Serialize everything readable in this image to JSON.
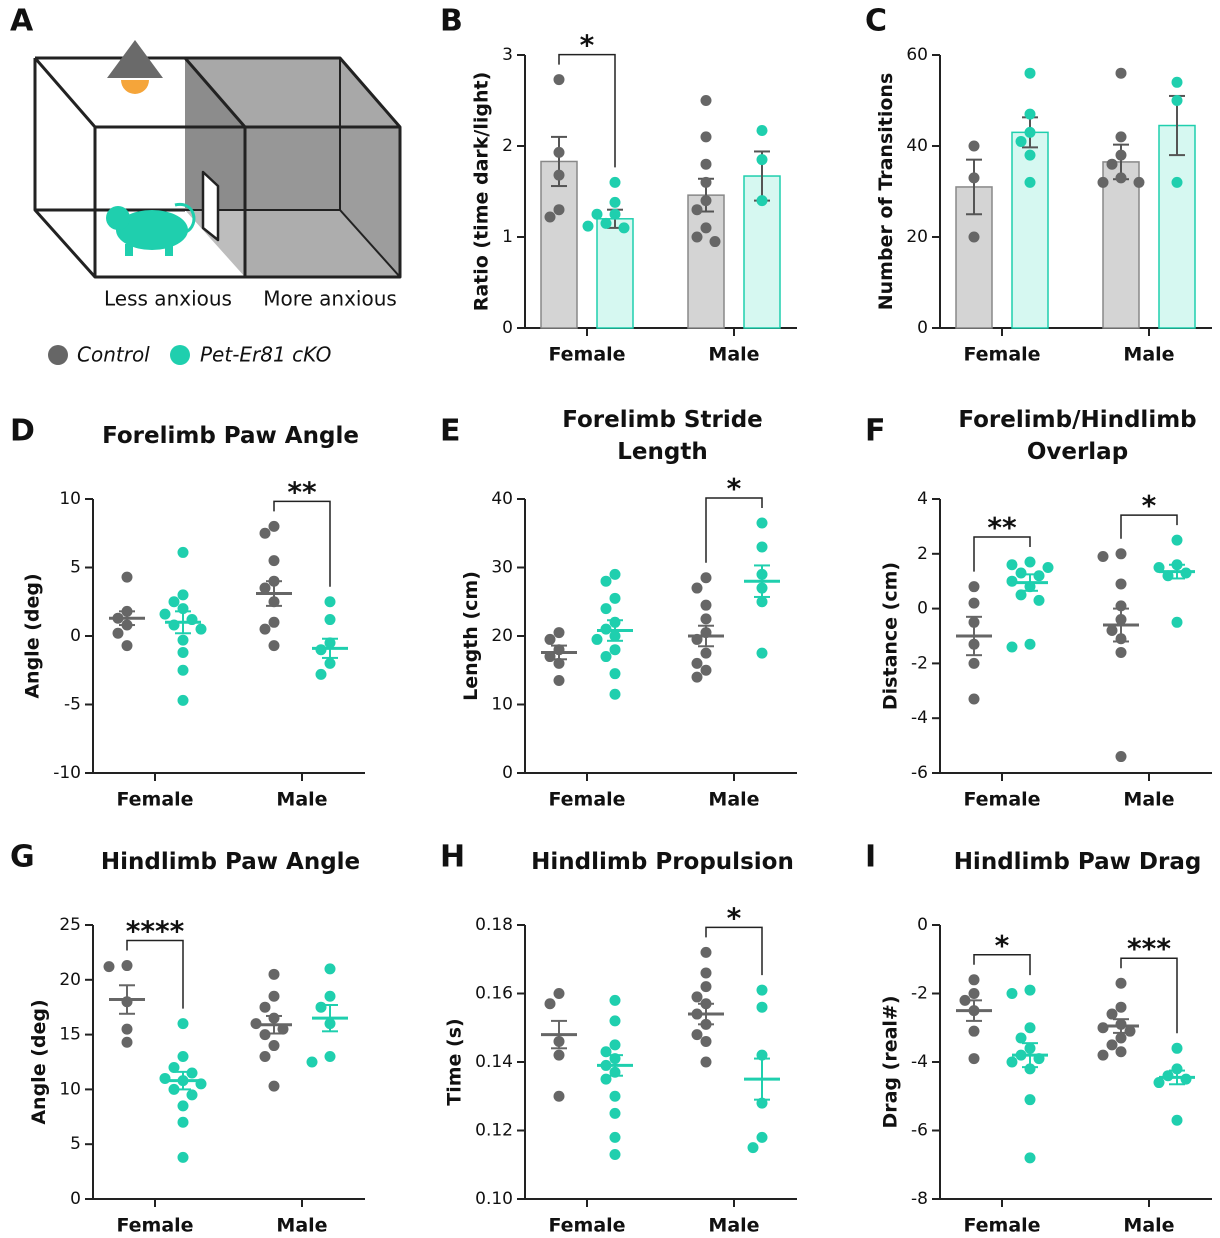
{
  "diagram": {
    "panel": "A",
    "left_caption": "Less anxious",
    "right_caption": "More anxious"
  },
  "legend": [
    {
      "name": "Control",
      "color": "#666666",
      "fill": "#d4d4d4"
    },
    {
      "name": "Pet-Er81 cKO",
      "color": "#1fcfae",
      "fill": "#d6f8f1"
    }
  ],
  "chart_data": [
    {
      "type": "bar",
      "panel": "B",
      "ylabel": "Ratio (time dark/light)",
      "categories": [
        "Female",
        "Male"
      ],
      "ylim": [
        0,
        3
      ],
      "yticks": [
        0,
        1,
        2,
        3
      ],
      "series": [
        {
          "means": [
            1.83,
            1.46
          ],
          "errors": [
            0.27,
            0.18
          ],
          "points": [
            [
              2.73,
              1.93,
              1.68,
              1.3,
              1.22
            ],
            [
              2.5,
              2.1,
              1.8,
              1.6,
              1.4,
              1.3,
              1.1,
              1.0,
              0.95
            ]
          ]
        },
        {
          "means": [
            1.2,
            1.67
          ],
          "errors": [
            0.1,
            0.27
          ],
          "points": [
            [
              1.6,
              1.38,
              1.25,
              1.15,
              1.1,
              1.12,
              1.25
            ],
            [
              2.17,
              1.85,
              1.4
            ]
          ]
        }
      ],
      "annotations": [
        {
          "category": 0,
          "text": "*"
        }
      ]
    },
    {
      "type": "bar",
      "panel": "C",
      "ylabel": "Number of Transitions",
      "categories": [
        "Female",
        "Male"
      ],
      "ylim": [
        0,
        60
      ],
      "yticks": [
        0,
        20,
        40,
        60
      ],
      "series": [
        {
          "means": [
            31,
            36.5
          ],
          "errors": [
            6,
            3.8
          ],
          "points": [
            [
              40,
              33,
              20
            ],
            [
              56,
              42,
              38,
              36,
              33,
              32,
              32
            ]
          ]
        },
        {
          "means": [
            43,
            44.5
          ],
          "errors": [
            3.3,
            6.5
          ],
          "points": [
            [
              56,
              47,
              43,
              41,
              38,
              32
            ],
            [
              54,
              50,
              32
            ]
          ]
        }
      ],
      "annotations": []
    },
    {
      "type": "scatter",
      "panel": "D",
      "title": "Forelimb Paw Angle",
      "ylabel": "Angle (deg)",
      "categories": [
        "Female",
        "Male"
      ],
      "ylim": [
        -10,
        10
      ],
      "yticks": [
        -10,
        -5,
        0,
        5,
        10
      ],
      "series": [
        {
          "means": [
            1.3,
            3.1
          ],
          "errors": [
            0.5,
            0.9
          ],
          "points": [
            [
              4.3,
              1.8,
              1.3,
              0.8,
              0.2,
              -0.7
            ],
            [
              8.0,
              7.5,
              5.5,
              4.0,
              3.5,
              2.5,
              1.0,
              0.5,
              -0.7
            ]
          ]
        },
        {
          "means": [
            1.0,
            -0.9
          ],
          "errors": [
            0.8,
            0.7
          ],
          "points": [
            [
              6.1,
              3.0,
              2.5,
              2.0,
              1.6,
              1.2,
              0.8,
              0.5,
              -0.3,
              -1.2,
              -2.5,
              -4.7
            ],
            [
              2.5,
              1.2,
              -0.5,
              -1.0,
              -2.0,
              -2.8
            ]
          ]
        }
      ],
      "annotations": [
        {
          "category": 1,
          "text": "**"
        }
      ]
    },
    {
      "type": "scatter",
      "panel": "E",
      "title": "Forelimb Stride Length",
      "ylabel": "Length (cm)",
      "categories": [
        "Female",
        "Male"
      ],
      "ylim": [
        0,
        40
      ],
      "yticks": [
        0,
        10,
        20,
        30,
        40
      ],
      "series": [
        {
          "means": [
            17.6,
            20
          ],
          "errors": [
            1,
            1.5
          ],
          "points": [
            [
              20.5,
              19.5,
              18,
              17,
              16,
              13.5
            ],
            [
              28.5,
              27,
              24.5,
              22.5,
              20.5,
              19.5,
              17.5,
              16,
              15,
              14
            ]
          ]
        },
        {
          "means": [
            20.8,
            28
          ],
          "errors": [
            1.5,
            2.3
          ],
          "points": [
            [
              29,
              28,
              25.5,
              24,
              22,
              21,
              20,
              19.5,
              18,
              17,
              14.5,
              11.5
            ],
            [
              36.5,
              33,
              29,
              27,
              25,
              17.5
            ]
          ]
        }
      ],
      "annotations": [
        {
          "category": 1,
          "text": "*"
        }
      ]
    },
    {
      "type": "scatter",
      "panel": "F",
      "title": "Forelimb/Hindlimb Overlap",
      "ylabel": "Distance (cm)",
      "categories": [
        "Female",
        "Male"
      ],
      "ylim": [
        -6,
        4
      ],
      "yticks": [
        -6,
        -4,
        -2,
        0,
        2,
        4
      ],
      "series": [
        {
          "means": [
            -1.0,
            -0.6
          ],
          "errors": [
            0.7,
            0.6
          ],
          "points": [
            [
              0.8,
              0.2,
              -0.5,
              -1.3,
              -2.0,
              -3.3
            ],
            [
              2.0,
              1.9,
              0.9,
              0.1,
              -0.4,
              -0.8,
              -1.1,
              -1.6,
              -5.4
            ]
          ]
        },
        {
          "means": [
            0.95,
            1.35
          ],
          "errors": [
            0.3,
            0.25
          ],
          "points": [
            [
              1.7,
              1.6,
              1.5,
              1.3,
              1.2,
              1.0,
              0.8,
              0.5,
              0.3,
              -1.3,
              -1.4
            ],
            [
              2.5,
              1.6,
              1.5,
              1.3,
              1.2,
              -0.5
            ]
          ]
        }
      ],
      "annotations": [
        {
          "category": 0,
          "text": "**"
        },
        {
          "category": 1,
          "text": "*"
        }
      ]
    },
    {
      "type": "scatter",
      "panel": "G",
      "title": "Hindlimb Paw Angle",
      "ylabel": "Angle (deg)",
      "categories": [
        "Female",
        "Male"
      ],
      "ylim": [
        0,
        25
      ],
      "yticks": [
        0,
        5,
        10,
        15,
        20,
        25
      ],
      "series": [
        {
          "means": [
            18.2,
            15.9
          ],
          "errors": [
            1.3,
            0.8
          ],
          "points": [
            [
              21.3,
              21.2,
              18,
              15.5,
              14.3
            ],
            [
              20.5,
              18.5,
              17.5,
              16.5,
              16,
              15.5,
              15,
              14,
              13,
              10.3
            ]
          ]
        },
        {
          "means": [
            10.8,
            16.5
          ],
          "errors": [
            0.8,
            1.2
          ],
          "points": [
            [
              16,
              13,
              12,
              11.5,
              11,
              10.8,
              10.5,
              10,
              9.5,
              8.5,
              7,
              3.8
            ],
            [
              21,
              18.5,
              17.5,
              16,
              13,
              12.5
            ]
          ]
        }
      ],
      "annotations": [
        {
          "category": 0,
          "text": "****"
        }
      ]
    },
    {
      "type": "scatter",
      "panel": "H",
      "title": "Hindlimb Propulsion",
      "ylabel": "Time (s)",
      "categories": [
        "Female",
        "Male"
      ],
      "ylim": [
        0.1,
        0.18
      ],
      "yticks": [
        {
          "value": 0.1,
          "label": "0.10"
        },
        0.12,
        0.14,
        0.16,
        0.18
      ],
      "series": [
        {
          "means": [
            0.148,
            0.154
          ],
          "errors": [
            0.004,
            0.003
          ],
          "points": [
            [
              0.16,
              0.157,
              0.146,
              0.142,
              0.13
            ],
            [
              0.172,
              0.166,
              0.162,
              0.159,
              0.157,
              0.154,
              0.151,
              0.148,
              0.146,
              0.14
            ]
          ]
        },
        {
          "means": [
            0.139,
            0.135
          ],
          "errors": [
            0.003,
            0.006
          ],
          "points": [
            [
              0.158,
              0.152,
              0.145,
              0.143,
              0.141,
              0.139,
              0.137,
              0.135,
              0.13,
              0.125,
              0.118,
              0.113
            ],
            [
              0.161,
              0.156,
              0.142,
              0.128,
              0.118,
              0.115
            ]
          ]
        }
      ],
      "annotations": [
        {
          "category": 1,
          "text": "*"
        }
      ]
    },
    {
      "type": "scatter",
      "panel": "I",
      "title": "Hindlimb Paw Drag",
      "ylabel": "Drag (real#)",
      "categories": [
        "Female",
        "Male"
      ],
      "ylim": [
        -8,
        0
      ],
      "yticks": [
        -8,
        -6,
        -4,
        -2,
        0
      ],
      "series": [
        {
          "means": [
            -2.5,
            -2.95
          ],
          "errors": [
            0.3,
            0.2
          ],
          "points": [
            [
              -1.6,
              -2.0,
              -2.2,
              -2.5,
              -3.1,
              -3.9
            ],
            [
              -1.7,
              -2.4,
              -2.6,
              -2.9,
              -3.0,
              -3.1,
              -3.3,
              -3.5,
              -3.7,
              -3.8
            ]
          ]
        },
        {
          "means": [
            -3.8,
            -4.45
          ],
          "errors": [
            0.35,
            0.2
          ],
          "points": [
            [
              -1.9,
              -2.0,
              -3.0,
              -3.3,
              -3.6,
              -3.8,
              -3.9,
              -4.0,
              -4.2,
              -5.1,
              -6.8
            ],
            [
              -3.6,
              -4.2,
              -4.4,
              -4.5,
              -4.6,
              -5.7
            ]
          ]
        }
      ],
      "annotations": [
        {
          "category": 0,
          "text": "*"
        },
        {
          "category": 1,
          "text": "***"
        }
      ]
    }
  ]
}
